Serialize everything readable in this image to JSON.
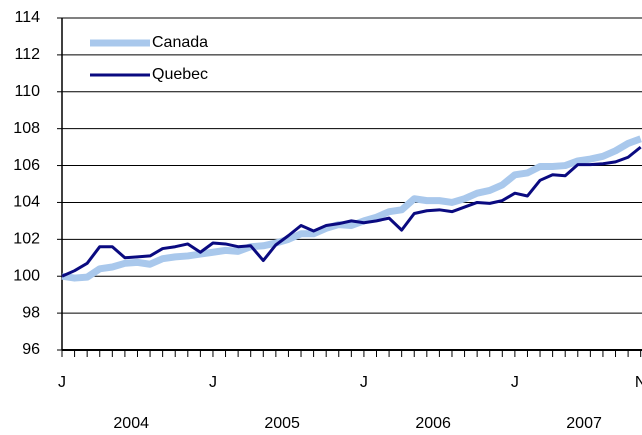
{
  "chart_data": {
    "type": "line",
    "categories": [
      "J",
      null,
      null,
      null,
      null,
      null,
      null,
      null,
      null,
      null,
      null,
      null,
      "J",
      null,
      null,
      null,
      null,
      null,
      null,
      null,
      null,
      null,
      null,
      null,
      "J",
      null,
      null,
      null,
      null,
      null,
      null,
      null,
      null,
      null,
      null,
      null,
      "J",
      null,
      null,
      null,
      null,
      null,
      null,
      null,
      null,
      null,
      "N"
    ],
    "year_labels": [
      "2004",
      "2005",
      "2006",
      "2007"
    ],
    "series": [
      {
        "name": "Canada",
        "color": "#a9c8ec",
        "values": [
          100.0,
          99.9,
          99.95,
          100.4,
          100.5,
          100.7,
          100.75,
          100.65,
          100.95,
          101.05,
          101.1,
          101.2,
          101.3,
          101.4,
          101.35,
          101.6,
          101.65,
          101.8,
          102.0,
          102.3,
          102.3,
          102.6,
          102.8,
          102.75,
          103.0,
          103.2,
          103.5,
          103.6,
          104.2,
          104.1,
          104.1,
          104.0,
          104.2,
          104.5,
          104.65,
          104.95,
          105.5,
          105.6,
          105.95,
          105.95,
          106.0,
          106.25,
          106.35,
          106.5,
          106.8,
          107.2,
          107.45
        ]
      },
      {
        "name": "Quebec",
        "color": "#0a0a80",
        "values": [
          100.0,
          100.3,
          100.7,
          101.6,
          101.6,
          101.0,
          101.05,
          101.1,
          101.5,
          101.6,
          101.75,
          101.3,
          101.8,
          101.75,
          101.6,
          101.65,
          100.85,
          101.7,
          102.2,
          102.75,
          102.45,
          102.75,
          102.85,
          103.0,
          102.9,
          103.0,
          103.15,
          102.5,
          103.4,
          103.55,
          103.6,
          103.5,
          103.75,
          104.0,
          103.95,
          104.1,
          104.5,
          104.35,
          105.2,
          105.5,
          105.45,
          106.05,
          106.05,
          106.1,
          106.2,
          106.45,
          107.0
        ]
      }
    ],
    "ylim": [
      96,
      114
    ],
    "yticks": [
      96,
      98,
      100,
      102,
      104,
      106,
      108,
      110,
      112,
      114
    ],
    "grid": true,
    "legend": "upper left"
  }
}
